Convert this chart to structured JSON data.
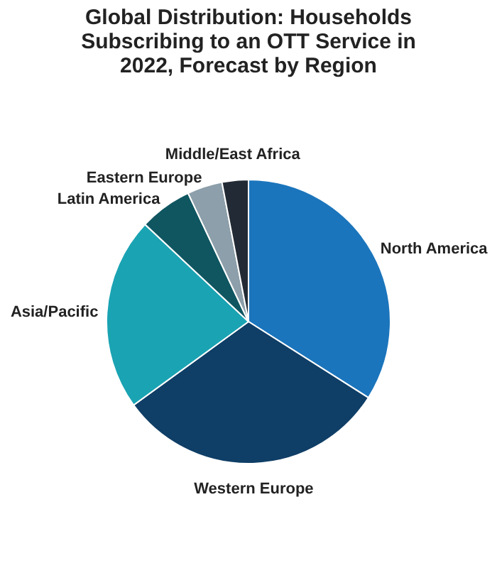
{
  "chart_data": {
    "type": "pie",
    "title": "Global Distribution: Households Subscribing to an OTT Service in 2022, Forecast by Region",
    "categories": [
      "North America",
      "Western Europe",
      "Asia/Pacific",
      "Latin America",
      "Eastern Europe",
      "Middle/East Africa"
    ],
    "values": [
      34,
      31,
      22,
      6,
      4,
      3
    ],
    "colors": [
      "#1b75bc",
      "#0f3e66",
      "#1aa3b3",
      "#0f5661",
      "#8c9faa",
      "#222b35"
    ]
  }
}
